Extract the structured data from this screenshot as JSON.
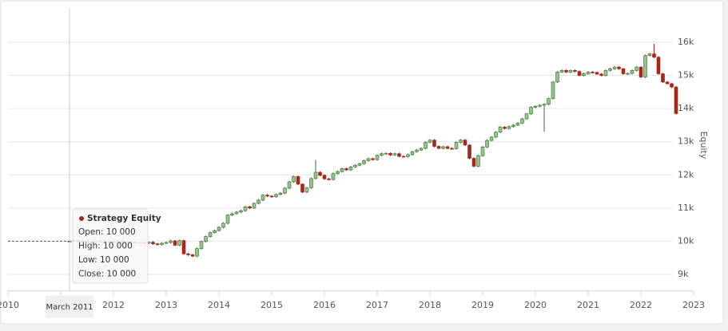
{
  "chart_data": {
    "type": "candlestick",
    "y_axis_label": "Equity",
    "xlim": [
      2010,
      2023
    ],
    "xticks": [
      2010,
      2011,
      2012,
      2013,
      2014,
      2015,
      2016,
      2017,
      2018,
      2019,
      2020,
      2021,
      2022,
      2023
    ],
    "ylim": [
      8500,
      17000
    ],
    "yticks": [
      {
        "value": 9000,
        "label": "9k"
      },
      {
        "value": 10000,
        "label": "10k"
      },
      {
        "value": 11000,
        "label": "11k"
      },
      {
        "value": 12000,
        "label": "12k"
      },
      {
        "value": 13000,
        "label": "13k"
      },
      {
        "value": 14000,
        "label": "14k"
      },
      {
        "value": 15000,
        "label": "15k"
      },
      {
        "value": 16000,
        "label": "16k"
      }
    ],
    "grid": true,
    "x": [
      "2011-03",
      "2011-04",
      "2011-05",
      "2011-06",
      "2011-07",
      "2011-08",
      "2011-09",
      "2011-10",
      "2011-11",
      "2011-12",
      "2012-01",
      "2012-02",
      "2012-03",
      "2012-04",
      "2012-05",
      "2012-06",
      "2012-07",
      "2012-08",
      "2012-09",
      "2012-10",
      "2012-11",
      "2012-12",
      "2013-01",
      "2013-02",
      "2013-03",
      "2013-04",
      "2013-05",
      "2013-06",
      "2013-07",
      "2013-08",
      "2013-09",
      "2013-10",
      "2013-11",
      "2013-12",
      "2014-01",
      "2014-02",
      "2014-03",
      "2014-04",
      "2014-05",
      "2014-06",
      "2014-07",
      "2014-08",
      "2014-09",
      "2014-10",
      "2014-11",
      "2014-12",
      "2015-01",
      "2015-02",
      "2015-03",
      "2015-04",
      "2015-05",
      "2015-06",
      "2015-07",
      "2015-08",
      "2015-09",
      "2015-10",
      "2015-11",
      "2015-12",
      "2016-01",
      "2016-02",
      "2016-03",
      "2016-04",
      "2016-05",
      "2016-06",
      "2016-07",
      "2016-08",
      "2016-09",
      "2016-10",
      "2016-11",
      "2016-12",
      "2017-01",
      "2017-02",
      "2017-03",
      "2017-04",
      "2017-05",
      "2017-06",
      "2017-07",
      "2017-08",
      "2017-09",
      "2017-10",
      "2017-11",
      "2017-12",
      "2018-01",
      "2018-02",
      "2018-03",
      "2018-04",
      "2018-05",
      "2018-06",
      "2018-07",
      "2018-08",
      "2018-09",
      "2018-10",
      "2018-11",
      "2018-12",
      "2019-01",
      "2019-02",
      "2019-03",
      "2019-04",
      "2019-05",
      "2019-06",
      "2019-07",
      "2019-08",
      "2019-09",
      "2019-10",
      "2019-11",
      "2019-12",
      "2020-01",
      "2020-02",
      "2020-03",
      "2020-04",
      "2020-05",
      "2020-06",
      "2020-07",
      "2020-08",
      "2020-09",
      "2020-10",
      "2020-11",
      "2020-12",
      "2021-01",
      "2021-02",
      "2021-03",
      "2021-04",
      "2021-05",
      "2021-06",
      "2021-07",
      "2021-08",
      "2021-09",
      "2021-10",
      "2021-11",
      "2021-12",
      "2022-01",
      "2022-02",
      "2022-03",
      "2022-04",
      "2022-05",
      "2022-06",
      "2022-07",
      "2022-08",
      "2022-09"
    ],
    "series": [
      {
        "name": "Strategy Equity",
        "color": "#a5281b",
        "up_color": "#93c58a",
        "up_stroke": "#3d6e36",
        "down_color": "#a5281b",
        "open": [
          10000,
          10000,
          10020,
          9990,
          10010,
          9980,
          9960,
          9990,
          10010,
          9980,
          10000,
          9990,
          10010,
          9980,
          9960,
          9970,
          9950,
          9960,
          9940,
          9970,
          9920,
          9900,
          9940,
          9960,
          10010,
          9880,
          10020,
          9620,
          9590,
          9550,
          9780,
          9990,
          10140,
          10260,
          10320,
          10420,
          10540,
          10790,
          10830,
          10880,
          10920,
          11040,
          11000,
          11140,
          11240,
          11390,
          11360,
          11340,
          11410,
          11450,
          11600,
          11790,
          11950,
          11720,
          11480,
          11610,
          11890,
          12080,
          11990,
          11880,
          11860,
          12040,
          12100,
          12190,
          12150,
          12240,
          12290,
          12340,
          12430,
          12490,
          12460,
          12590,
          12640,
          12650,
          12600,
          12640,
          12560,
          12550,
          12610,
          12700,
          12750,
          12800,
          12980,
          13050,
          12860,
          12800,
          12850,
          12800,
          12790,
          12980,
          13050,
          12900,
          12500,
          12260,
          12580,
          12840,
          13040,
          13140,
          13290,
          13440,
          13400,
          13460,
          13500,
          13560,
          13690,
          13840,
          14040,
          14070,
          14100,
          14130,
          14300,
          14800,
          15100,
          15150,
          15100,
          15150,
          15120,
          15000,
          15050,
          15100,
          15090,
          15040,
          15000,
          15150,
          15200,
          15250,
          15200,
          15050,
          15060,
          15150,
          15250,
          14950,
          15600,
          15650,
          15550,
          15050,
          14800,
          14750,
          14650
        ],
        "high": [
          10000,
          10050,
          10050,
          10040,
          10040,
          10010,
          10020,
          10040,
          10040,
          10030,
          10030,
          10040,
          10040,
          10010,
          10000,
          10000,
          9990,
          9990,
          9990,
          10000,
          9950,
          9970,
          9990,
          10040,
          10040,
          10050,
          10050,
          9650,
          9620,
          9810,
          10020,
          10170,
          10290,
          10350,
          10450,
          10570,
          10820,
          10860,
          10910,
          10950,
          11070,
          11070,
          11170,
          11270,
          11420,
          11420,
          11390,
          11440,
          11480,
          11630,
          11820,
          11980,
          11980,
          11750,
          11640,
          11920,
          12450,
          12110,
          12020,
          11910,
          12070,
          12130,
          12220,
          12220,
          12270,
          12320,
          12370,
          12460,
          12520,
          12520,
          12620,
          12670,
          12680,
          12680,
          12670,
          12670,
          12590,
          12640,
          12730,
          12780,
          12830,
          13010,
          13080,
          13080,
          12890,
          12880,
          12880,
          12830,
          13010,
          13080,
          13080,
          12930,
          12530,
          12610,
          12870,
          13070,
          13170,
          13320,
          13470,
          13470,
          13490,
          13530,
          13590,
          13720,
          13870,
          14070,
          14100,
          14130,
          14160,
          14330,
          14830,
          15130,
          15180,
          15180,
          15180,
          15180,
          15150,
          15080,
          15130,
          15130,
          15120,
          15070,
          15180,
          15230,
          15280,
          15280,
          15230,
          15090,
          15180,
          15280,
          15280,
          15630,
          15680,
          15950,
          15580,
          15080,
          14830,
          14780,
          14680
        ],
        "low": [
          10000,
          9970,
          9960,
          9960,
          9950,
          9930,
          9930,
          9960,
          9950,
          9950,
          9960,
          9960,
          9950,
          9930,
          9930,
          9920,
          9920,
          9910,
          9910,
          9890,
          9870,
          9870,
          9910,
          9930,
          9850,
          9850,
          9590,
          9560,
          9520,
          9520,
          9750,
          9960,
          10110,
          10230,
          10290,
          10390,
          10510,
          10760,
          10800,
          10850,
          10890,
          10970,
          10970,
          11110,
          11210,
          11330,
          11310,
          11310,
          11380,
          11420,
          11570,
          11760,
          11690,
          11450,
          11450,
          11580,
          11860,
          11960,
          11850,
          11830,
          11830,
          12010,
          12070,
          12120,
          12120,
          12210,
          12260,
          12310,
          12400,
          12430,
          12430,
          12560,
          12610,
          12570,
          12570,
          12530,
          12520,
          12520,
          12580,
          12670,
          12720,
          12770,
          12950,
          12830,
          12770,
          12770,
          12770,
          12760,
          12760,
          12950,
          12870,
          12470,
          12230,
          12230,
          12550,
          12810,
          13010,
          13110,
          13260,
          13370,
          13370,
          13430,
          13470,
          13530,
          13660,
          13810,
          14010,
          14040,
          13300,
          14100,
          14270,
          14770,
          15070,
          15070,
          15070,
          15090,
          14970,
          14970,
          15020,
          15060,
          15010,
          14970,
          14970,
          15120,
          15170,
          15170,
          15020,
          15020,
          15030,
          15120,
          14920,
          14920,
          15570,
          15520,
          15020,
          14770,
          14720,
          14620,
          13820
        ],
        "close": [
          10000,
          10020,
          9990,
          10010,
          9980,
          9960,
          9990,
          10010,
          9980,
          10000,
          9990,
          10010,
          9980,
          9960,
          9970,
          9950,
          9960,
          9940,
          9970,
          9920,
          9900,
          9940,
          9960,
          10010,
          9880,
          10020,
          9620,
          9590,
          9550,
          9780,
          9990,
          10140,
          10260,
          10320,
          10420,
          10540,
          10790,
          10830,
          10880,
          10920,
          11040,
          11000,
          11140,
          11240,
          11390,
          11360,
          11340,
          11410,
          11450,
          11600,
          11790,
          11950,
          11720,
          11480,
          11610,
          11890,
          12080,
          11990,
          11880,
          11860,
          12040,
          12100,
          12190,
          12150,
          12240,
          12290,
          12340,
          12430,
          12490,
          12460,
          12590,
          12640,
          12650,
          12600,
          12640,
          12560,
          12550,
          12610,
          12700,
          12750,
          12800,
          12980,
          13050,
          12860,
          12800,
          12850,
          12800,
          12790,
          12980,
          13050,
          12900,
          12500,
          12260,
          12580,
          12840,
          13040,
          13140,
          13290,
          13440,
          13400,
          13460,
          13500,
          13560,
          13690,
          13840,
          14040,
          14070,
          14100,
          14130,
          14300,
          14800,
          15100,
          15150,
          15100,
          15150,
          15120,
          15000,
          15050,
          15100,
          15090,
          15040,
          15000,
          15150,
          15200,
          15250,
          15200,
          15050,
          15060,
          15150,
          15250,
          14950,
          15600,
          15650,
          15550,
          15050,
          14800,
          14750,
          14650,
          13850
        ]
      }
    ],
    "crosshair": {
      "x_label": "March 2011"
    },
    "tooltip": {
      "lines": [
        "Open: 10 000",
        "High: 10 000",
        "Low: 10 000",
        "Close: 10 000"
      ]
    }
  }
}
